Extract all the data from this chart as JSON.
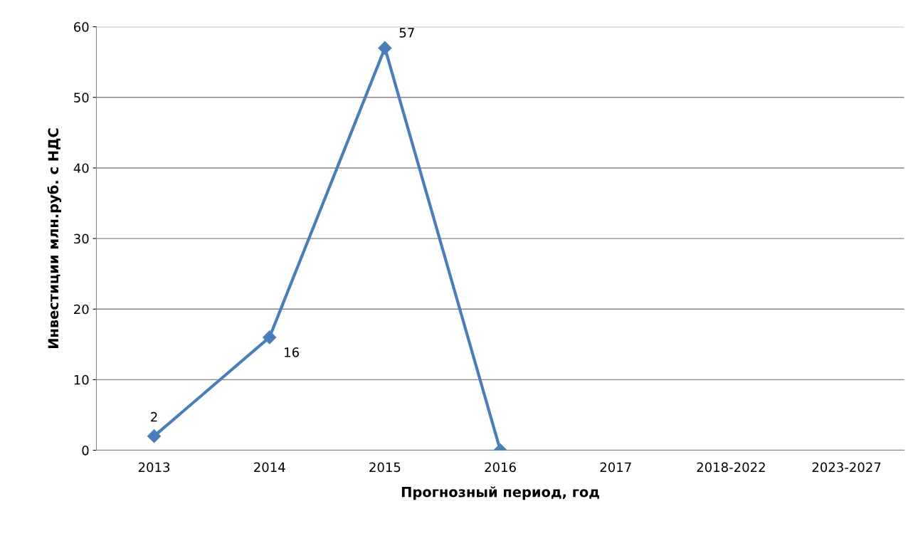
{
  "chart_data": {
    "type": "line",
    "xlabel": "Прогнозный период, год",
    "ylabel": "Инвестиции млн.руб. с НДС",
    "categories": [
      "2013",
      "2014",
      "2015",
      "2016",
      "2017",
      "2018-2022",
      "2023-2027"
    ],
    "series": [
      {
        "color": "#4a7ebb",
        "values": [
          2,
          16,
          57,
          0,
          null,
          null,
          null
        ],
        "value_labels": [
          "2",
          "16",
          "57",
          null,
          null,
          null,
          null
        ]
      }
    ],
    "ylim": [
      0,
      60
    ],
    "yticks": [
      0,
      10,
      20,
      30,
      40,
      50,
      60
    ],
    "grid": "y",
    "marker": "diamond",
    "line_style": "solid",
    "legend": false
  }
}
